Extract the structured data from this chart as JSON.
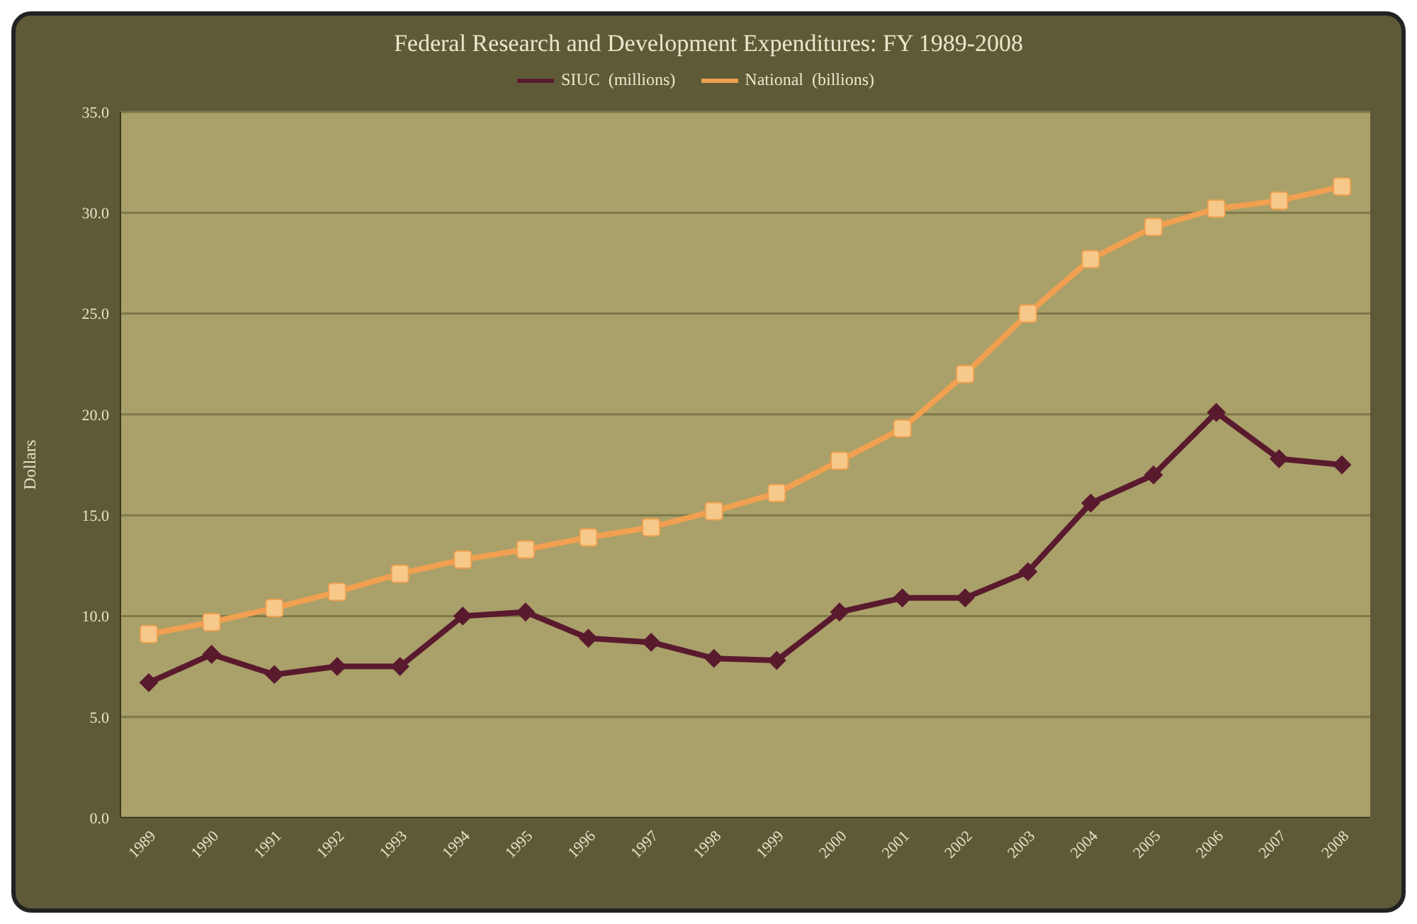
{
  "chart_data": {
    "type": "line",
    "title": "Federal Research and Development Expenditures: FY 1989-2008",
    "ylabel": "Dollars",
    "categories": [
      "1989",
      "1990",
      "1991",
      "1992",
      "1993",
      "1994",
      "1995",
      "1996",
      "1997",
      "1998",
      "1999",
      "2000",
      "2001",
      "2002",
      "2003",
      "2004",
      "2005",
      "2006",
      "2007",
      "2008"
    ],
    "series": [
      {
        "name": "SIUC  (millions)",
        "color": "#5a1a2e",
        "marker": "diamond",
        "values": [
          6.7,
          8.1,
          7.1,
          7.5,
          7.5,
          10.0,
          10.2,
          8.9,
          8.7,
          7.9,
          7.8,
          10.2,
          10.9,
          10.9,
          12.2,
          15.6,
          17.0,
          20.1,
          17.8,
          17.5
        ]
      },
      {
        "name": "National  (billions)",
        "color": "#f0a050",
        "marker": "square",
        "values": [
          9.1,
          9.7,
          10.4,
          11.2,
          12.1,
          12.8,
          13.3,
          13.9,
          14.4,
          15.2,
          16.1,
          17.7,
          19.3,
          22.0,
          25.0,
          27.7,
          29.3,
          30.2,
          30.6,
          31.3
        ]
      }
    ],
    "ylim": [
      0,
      35
    ],
    "yticks": [
      {
        "value": 0,
        "label": "0.0"
      },
      {
        "value": 5,
        "label": "5.0"
      },
      {
        "value": 10,
        "label": "10.0"
      },
      {
        "value": 15,
        "label": "15.0"
      },
      {
        "value": 20,
        "label": "20.0"
      },
      {
        "value": 25,
        "label": "25.0"
      },
      {
        "value": 30,
        "label": "30.0"
      },
      {
        "value": 35,
        "label": "35.0"
      }
    ],
    "grid": "y",
    "legend": "top",
    "line_style": "solid"
  }
}
